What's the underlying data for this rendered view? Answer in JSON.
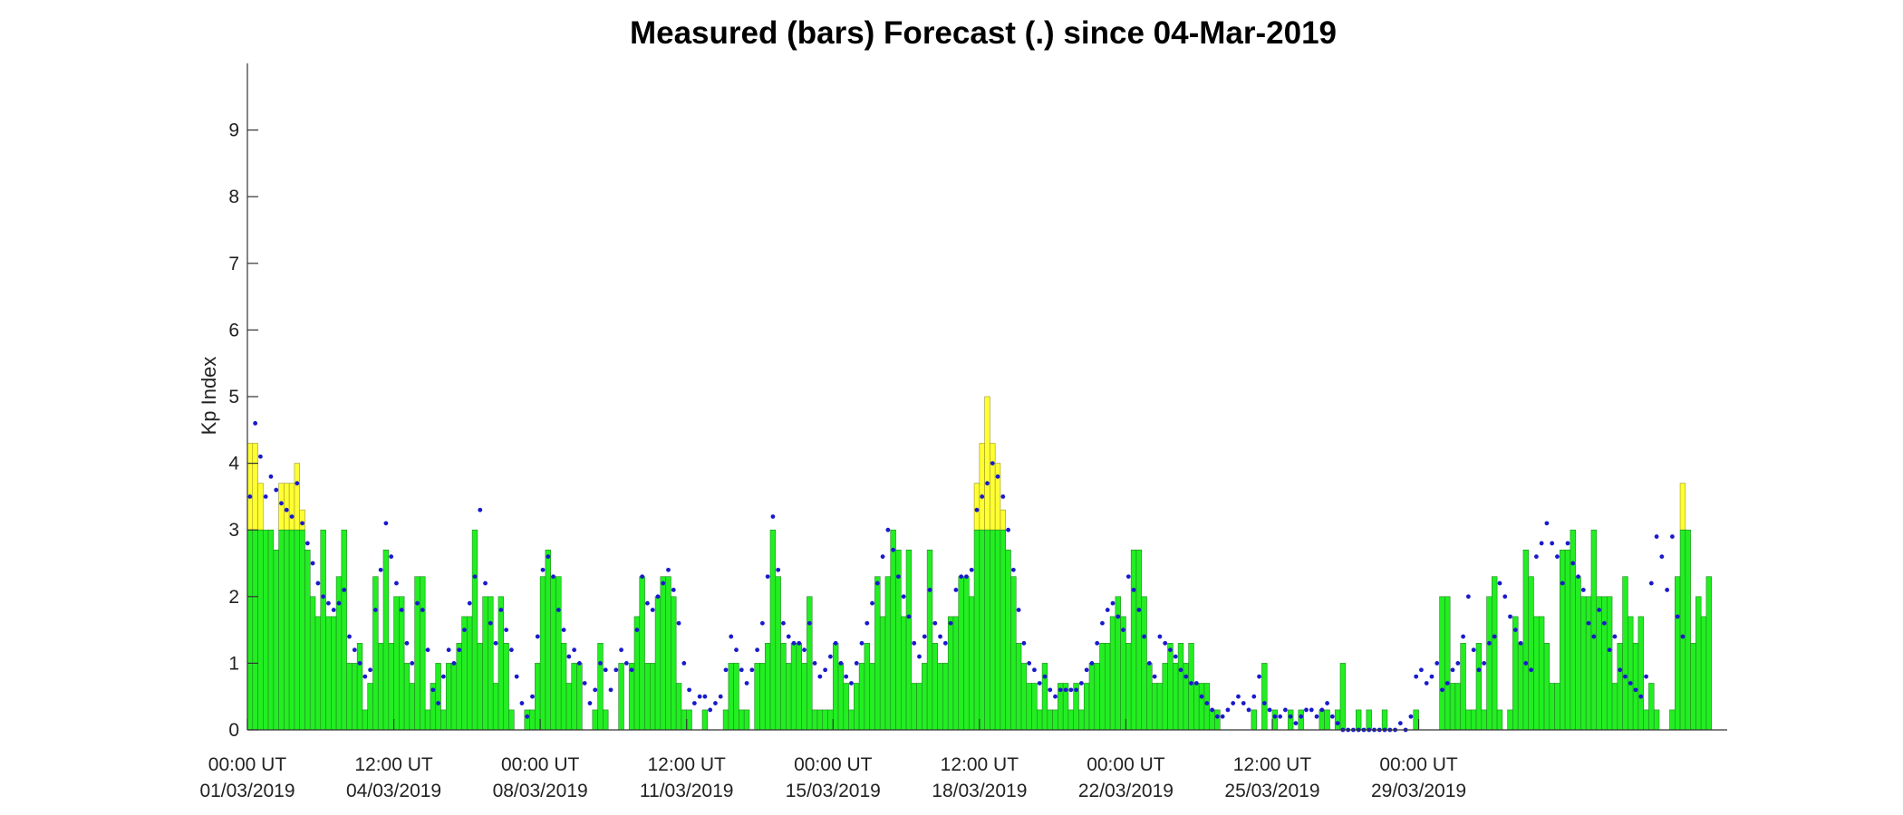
{
  "chart_data": {
    "type": "bar",
    "title": "Measured (bars) Forecast (.) since 04-Mar-2019",
    "ylabel": "Kp Index",
    "xlabel": "",
    "ylim": [
      0,
      10
    ],
    "yticks": [
      0,
      1,
      2,
      3,
      4,
      5,
      6,
      7,
      8,
      9
    ],
    "xlim": [
      "2019-03-01 00:00",
      "2019-04-05 09:00"
    ],
    "xticks": [
      {
        "x": "2019-03-01 00:00",
        "line1": "00:00 UT",
        "line2": "01/03/2019"
      },
      {
        "x": "2019-03-04 12:00",
        "line1": "12:00 UT",
        "line2": "04/03/2019"
      },
      {
        "x": "2019-03-08 00:00",
        "line1": "00:00 UT",
        "line2": "08/03/2019"
      },
      {
        "x": "2019-03-11 12:00",
        "line1": "12:00 UT",
        "line2": "11/03/2019"
      },
      {
        "x": "2019-03-15 00:00",
        "line1": "00:00 UT",
        "line2": "15/03/2019"
      },
      {
        "x": "2019-03-18 12:00",
        "line1": "12:00 UT",
        "line2": "18/03/2019"
      },
      {
        "x": "2019-03-22 00:00",
        "line1": "00:00 UT",
        "line2": "22/03/2019"
      },
      {
        "x": "2019-03-25 12:00",
        "line1": "12:00 UT",
        "line2": "25/03/2019"
      },
      {
        "x": "2019-03-29 00:00",
        "line1": "00:00 UT",
        "line2": "29/03/2019"
      }
    ],
    "bar_interval_hours": 3,
    "bar_threshold": 3,
    "colors": {
      "bar_quiet": "#22ee22",
      "bar_active": "#ffff33",
      "bar_edge": "#228822",
      "forecast_dot": "#1a1acc"
    },
    "series": [
      {
        "name": "Measured",
        "start": "2019-03-01 00:00",
        "values": [
          4.3,
          4.3,
          3.7,
          3.0,
          3.0,
          2.7,
          3.7,
          3.7,
          3.7,
          4.0,
          3.3,
          2.7,
          2.0,
          1.7,
          3.0,
          1.7,
          1.7,
          2.3,
          3.0,
          1.0,
          1.0,
          1.3,
          0.3,
          0.7,
          2.3,
          1.3,
          2.7,
          1.3,
          2.0,
          2.0,
          1.0,
          0.7,
          2.3,
          2.3,
          0.3,
          0.7,
          1.0,
          0.3,
          1.0,
          1.0,
          1.3,
          1.7,
          1.7,
          3.0,
          1.3,
          2.0,
          2.0,
          0.7,
          2.0,
          1.3,
          0.3,
          0.0,
          0.0,
          0.3,
          0.3,
          1.0,
          2.3,
          2.7,
          2.3,
          2.3,
          1.3,
          0.7,
          1.0,
          1.0,
          0.0,
          0.0,
          0.3,
          1.3,
          0.3,
          0.0,
          0.0,
          1.0,
          0.0,
          1.0,
          1.7,
          2.3,
          1.0,
          1.0,
          2.0,
          2.3,
          2.3,
          2.0,
          0.7,
          0.3,
          0.3,
          0.0,
          0.0,
          0.3,
          0.0,
          0.0,
          0.0,
          0.3,
          1.0,
          1.0,
          0.3,
          0.3,
          0.0,
          1.0,
          1.0,
          1.3,
          3.0,
          2.3,
          1.3,
          1.0,
          1.3,
          1.3,
          1.0,
          2.0,
          0.3,
          0.3,
          0.3,
          0.3,
          1.3,
          1.0,
          0.7,
          0.3,
          0.7,
          1.0,
          1.3,
          1.0,
          2.3,
          1.7,
          2.3,
          3.0,
          2.7,
          1.7,
          2.7,
          0.7,
          0.7,
          1.0,
          2.7,
          1.3,
          1.0,
          1.0,
          1.7,
          1.7,
          2.3,
          2.3,
          2.0,
          3.7,
          4.3,
          5.0,
          4.3,
          4.0,
          3.3,
          2.7,
          2.3,
          1.3,
          1.0,
          0.7,
          0.7,
          0.3,
          1.0,
          0.3,
          0.3,
          0.7,
          0.7,
          0.3,
          0.7,
          0.3,
          0.7,
          1.0,
          1.0,
          1.3,
          1.3,
          1.7,
          2.0,
          1.7,
          1.3,
          2.7,
          2.7,
          2.0,
          1.0,
          0.7,
          0.7,
          1.0,
          1.3,
          1.0,
          1.3,
          1.0,
          1.3,
          0.7,
          0.7,
          0.7,
          0.3,
          0.3,
          0.0,
          0.0,
          0.0,
          0.0,
          0.0,
          0.0,
          0.3,
          0.0,
          1.0,
          0.0,
          0.3,
          0.0,
          0.0,
          0.3,
          0.0,
          0.3,
          0.0,
          0.0,
          0.0,
          0.3,
          0.3,
          0.0,
          0.3,
          1.0,
          0.0,
          0.0,
          0.3,
          0.0,
          0.3,
          0.0,
          0.0,
          0.3,
          0.0,
          0.0,
          0.0,
          0.0,
          0.0,
          0.3,
          0.0,
          0.0,
          0.0,
          0.0,
          2.0,
          2.0,
          0.7,
          0.7,
          1.3,
          0.3,
          0.3,
          1.3,
          0.3,
          2.0,
          2.3,
          0.3,
          0.0,
          0.3,
          1.7,
          1.3,
          2.7,
          2.3,
          1.7,
          1.7,
          1.3,
          0.7,
          0.7,
          2.7,
          2.7,
          3.0,
          2.3,
          2.0,
          2.0,
          3.0,
          2.0,
          2.0,
          2.0,
          0.7,
          1.3,
          2.3,
          1.7,
          1.3,
          1.7,
          0.3,
          0.7,
          0.3,
          0.0,
          0.0,
          0.3,
          2.3,
          3.7,
          3.0,
          1.3,
          2.0,
          1.7,
          2.3
        ]
      },
      {
        "name": "Forecast",
        "start": "2019-03-01 00:00",
        "values": [
          3.5,
          4.6,
          4.1,
          3.5,
          3.8,
          3.6,
          3.4,
          3.3,
          3.2,
          3.7,
          3.1,
          2.8,
          2.5,
          2.2,
          2.0,
          1.9,
          1.8,
          1.9,
          2.1,
          1.4,
          1.2,
          1.0,
          0.8,
          0.9,
          1.8,
          2.4,
          3.1,
          2.6,
          2.2,
          1.8,
          1.3,
          1.0,
          1.9,
          1.8,
          1.2,
          0.6,
          0.4,
          0.8,
          1.2,
          1.0,
          1.2,
          1.5,
          1.9,
          2.3,
          3.3,
          2.2,
          1.6,
          1.3,
          1.8,
          1.5,
          1.2,
          0.8,
          0.4,
          0.2,
          0.5,
          1.4,
          2.4,
          2.6,
          2.3,
          1.8,
          1.5,
          1.1,
          1.2,
          1.0,
          0.7,
          0.4,
          0.6,
          1.0,
          0.9,
          0.6,
          0.9,
          1.2,
          1.0,
          0.9,
          1.5,
          2.3,
          1.9,
          1.8,
          2.0,
          2.2,
          2.4,
          2.1,
          1.6,
          1.0,
          0.6,
          0.4,
          0.5,
          0.5,
          0.3,
          0.4,
          0.5,
          0.9,
          1.4,
          1.2,
          0.9,
          0.7,
          0.9,
          1.2,
          1.6,
          2.3,
          3.2,
          2.4,
          1.6,
          1.4,
          1.3,
          1.3,
          1.2,
          1.6,
          1.0,
          0.8,
          0.9,
          1.1,
          1.3,
          1.0,
          0.8,
          0.7,
          1.0,
          1.3,
          1.6,
          1.9,
          2.2,
          2.6,
          3.0,
          2.7,
          2.3,
          2.0,
          1.7,
          1.3,
          1.1,
          1.4,
          2.1,
          1.6,
          1.4,
          1.3,
          1.6,
          2.1,
          2.3,
          2.3,
          2.4,
          3.3,
          3.5,
          3.7,
          4.0,
          3.8,
          3.5,
          3.0,
          2.4,
          1.8,
          1.3,
          1.0,
          0.9,
          0.7,
          0.8,
          0.6,
          0.5,
          0.6,
          0.6,
          0.6,
          0.6,
          0.7,
          0.9,
          1.0,
          1.3,
          1.6,
          1.8,
          1.9,
          1.7,
          1.5,
          2.3,
          2.1,
          1.8,
          1.4,
          1.0,
          0.8,
          1.4,
          1.3,
          1.2,
          1.1,
          0.9,
          0.8,
          0.7,
          0.7,
          0.5,
          0.4,
          0.3,
          0.2,
          0.2,
          0.3,
          0.4,
          0.5,
          0.4,
          0.3,
          0.5,
          0.8,
          0.4,
          0.3,
          0.2,
          0.2,
          0.3,
          0.2,
          0.1,
          0.2,
          0.3,
          0.3,
          0.2,
          0.3,
          0.4,
          0.2,
          0.1,
          0.0,
          0.0,
          0.0,
          0.0,
          0.0,
          0.0,
          0.0,
          0.0,
          0.0,
          0.0,
          0.0,
          0.1,
          0.0,
          0.2,
          0.8,
          0.9,
          0.7,
          0.8,
          1.0,
          0.6,
          0.7,
          0.9,
          1.0,
          1.4,
          2.0,
          1.2,
          0.9,
          1.0,
          1.3,
          1.4,
          2.2,
          2.0,
          1.7,
          1.5,
          1.3,
          1.0,
          0.9,
          2.6,
          2.8,
          3.1,
          2.8,
          2.6,
          2.2,
          2.8,
          2.5,
          2.3,
          2.1,
          1.6,
          1.4,
          1.8,
          1.6,
          1.2,
          1.4,
          0.9,
          0.8,
          0.7,
          0.6,
          0.5,
          0.8,
          2.2,
          2.9,
          2.6,
          2.1,
          2.9,
          1.7,
          1.4
        ]
      }
    ]
  }
}
